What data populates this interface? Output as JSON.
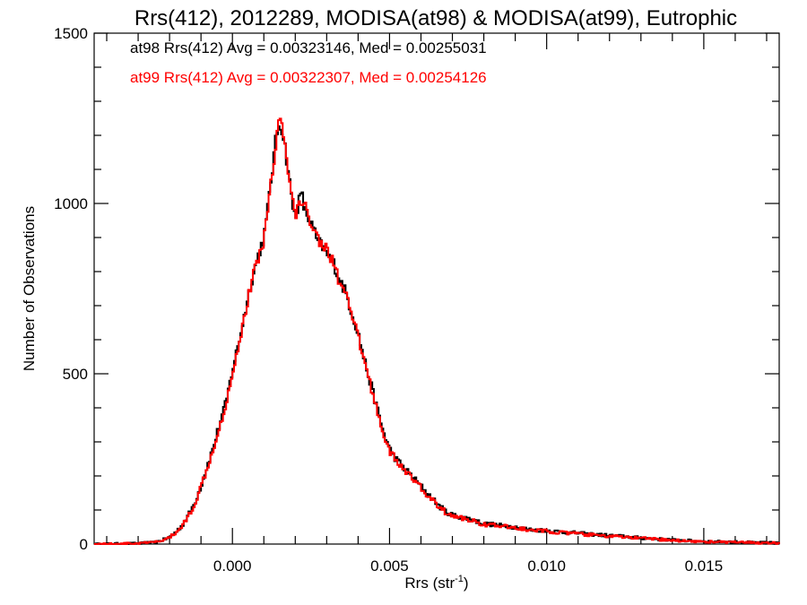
{
  "chart_data": {
    "type": "histogram-step",
    "title": "Rrs(412), 2012289, MODISA(at98) & MODISA(at99), Eutrophic",
    "xlabel": "Rrs (str",
    "xlabel_sup": "-1",
    "xlabel_tail": ")",
    "ylabel": "Number of Observations",
    "xlim": [
      -0.0044,
      0.0174
    ],
    "ylim": [
      0,
      1500
    ],
    "xticks": [
      0.0,
      0.005,
      0.01,
      0.015
    ],
    "xtick_labels": [
      "0.000",
      "0.005",
      "0.010",
      "0.015"
    ],
    "yticks": [
      0,
      500,
      1000,
      1500
    ],
    "ytick_labels": [
      "0",
      "500",
      "1000",
      "1500"
    ],
    "legend": [
      {
        "text": "at98 Rrs(412) Avg = 0.00323146, Med = 0.00255031",
        "color": "#000000"
      },
      {
        "text": "at99 Rrs(412) Avg = 0.00322307, Med = 0.00254126",
        "color": "#ff0000"
      }
    ],
    "series": [
      {
        "name": "at98",
        "color": "#000000",
        "points": [
          [
            -0.0044,
            0
          ],
          [
            -0.003,
            2
          ],
          [
            -0.0025,
            5
          ],
          [
            -0.0022,
            12
          ],
          [
            -0.002,
            20
          ],
          [
            -0.0018,
            35
          ],
          [
            -0.0016,
            55
          ],
          [
            -0.0014,
            85
          ],
          [
            -0.0012,
            120
          ],
          [
            -0.001,
            170
          ],
          [
            -0.0008,
            230
          ],
          [
            -0.0006,
            285
          ],
          [
            -0.0004,
            355
          ],
          [
            -0.0002,
            415
          ],
          [
            0.0,
            510
          ],
          [
            0.0002,
            590
          ],
          [
            0.0004,
            680
          ],
          [
            0.0006,
            770
          ],
          [
            0.0008,
            840
          ],
          [
            0.001,
            900
          ],
          [
            0.0011,
            960
          ],
          [
            0.0012,
            1050
          ],
          [
            0.0013,
            1120
          ],
          [
            0.0014,
            1200
          ],
          [
            0.0015,
            1240
          ],
          [
            0.0016,
            1210
          ],
          [
            0.0017,
            1150
          ],
          [
            0.0018,
            1080
          ],
          [
            0.0019,
            1000
          ],
          [
            0.002,
            960
          ],
          [
            0.0021,
            1000
          ],
          [
            0.0022,
            1030
          ],
          [
            0.0023,
            980
          ],
          [
            0.0024,
            960
          ],
          [
            0.0025,
            940
          ],
          [
            0.0026,
            920
          ],
          [
            0.0027,
            890
          ],
          [
            0.0028,
            880
          ],
          [
            0.0029,
            870
          ],
          [
            0.003,
            850
          ],
          [
            0.0032,
            830
          ],
          [
            0.0034,
            780
          ],
          [
            0.0036,
            740
          ],
          [
            0.0038,
            680
          ],
          [
            0.004,
            620
          ],
          [
            0.0042,
            540
          ],
          [
            0.0044,
            470
          ],
          [
            0.0046,
            400
          ],
          [
            0.0048,
            330
          ],
          [
            0.005,
            280
          ],
          [
            0.0052,
            250
          ],
          [
            0.0054,
            230
          ],
          [
            0.0056,
            210
          ],
          [
            0.0058,
            190
          ],
          [
            0.006,
            170
          ],
          [
            0.0062,
            150
          ],
          [
            0.0064,
            130
          ],
          [
            0.0066,
            110
          ],
          [
            0.0068,
            95
          ],
          [
            0.007,
            85
          ],
          [
            0.0075,
            75
          ],
          [
            0.008,
            60
          ],
          [
            0.0085,
            55
          ],
          [
            0.009,
            50
          ],
          [
            0.0095,
            42
          ],
          [
            0.01,
            40
          ],
          [
            0.0105,
            35
          ],
          [
            0.011,
            32
          ],
          [
            0.0115,
            28
          ],
          [
            0.012,
            25
          ],
          [
            0.0125,
            22
          ],
          [
            0.013,
            18
          ],
          [
            0.0135,
            15
          ],
          [
            0.014,
            12
          ],
          [
            0.0145,
            10
          ],
          [
            0.015,
            8
          ],
          [
            0.0155,
            7
          ],
          [
            0.016,
            6
          ],
          [
            0.0165,
            5
          ],
          [
            0.017,
            4
          ],
          [
            0.0174,
            3
          ]
        ]
      },
      {
        "name": "at99",
        "color": "#ff0000",
        "points": [
          [
            -0.0044,
            0
          ],
          [
            -0.003,
            2
          ],
          [
            -0.0025,
            5
          ],
          [
            -0.0022,
            11
          ],
          [
            -0.002,
            19
          ],
          [
            -0.0018,
            33
          ],
          [
            -0.0016,
            53
          ],
          [
            -0.0014,
            82
          ],
          [
            -0.0012,
            118
          ],
          [
            -0.001,
            168
          ],
          [
            -0.0008,
            226
          ],
          [
            -0.0006,
            282
          ],
          [
            -0.0004,
            350
          ],
          [
            -0.0002,
            410
          ],
          [
            0.0,
            505
          ],
          [
            0.0002,
            585
          ],
          [
            0.0004,
            675
          ],
          [
            0.0006,
            765
          ],
          [
            0.0008,
            835
          ],
          [
            0.001,
            895
          ],
          [
            0.0011,
            955
          ],
          [
            0.0012,
            1045
          ],
          [
            0.0013,
            1115
          ],
          [
            0.0014,
            1195
          ],
          [
            0.0015,
            1250
          ],
          [
            0.0016,
            1220
          ],
          [
            0.0017,
            1145
          ],
          [
            0.0018,
            1075
          ],
          [
            0.0019,
            1010
          ],
          [
            0.002,
            970
          ],
          [
            0.0021,
            990
          ],
          [
            0.0022,
            1010
          ],
          [
            0.0023,
            990
          ],
          [
            0.0024,
            970
          ],
          [
            0.0025,
            950
          ],
          [
            0.0026,
            930
          ],
          [
            0.0027,
            900
          ],
          [
            0.0028,
            890
          ],
          [
            0.0029,
            880
          ],
          [
            0.003,
            860
          ],
          [
            0.0032,
            835
          ],
          [
            0.0034,
            770
          ],
          [
            0.0036,
            730
          ],
          [
            0.0038,
            670
          ],
          [
            0.004,
            610
          ],
          [
            0.0042,
            535
          ],
          [
            0.0044,
            465
          ],
          [
            0.0046,
            395
          ],
          [
            0.0048,
            325
          ],
          [
            0.005,
            275
          ],
          [
            0.0052,
            245
          ],
          [
            0.0054,
            225
          ],
          [
            0.0056,
            205
          ],
          [
            0.0058,
            185
          ],
          [
            0.006,
            165
          ],
          [
            0.0062,
            145
          ],
          [
            0.0064,
            125
          ],
          [
            0.0066,
            108
          ],
          [
            0.0068,
            92
          ],
          [
            0.007,
            82
          ],
          [
            0.0075,
            72
          ],
          [
            0.008,
            58
          ],
          [
            0.0085,
            53
          ],
          [
            0.009,
            48
          ],
          [
            0.0095,
            40
          ],
          [
            0.01,
            38
          ],
          [
            0.0105,
            33
          ],
          [
            0.011,
            30
          ],
          [
            0.0115,
            26
          ],
          [
            0.012,
            23
          ],
          [
            0.0125,
            20
          ],
          [
            0.013,
            17
          ],
          [
            0.0135,
            14
          ],
          [
            0.014,
            11
          ],
          [
            0.0145,
            9
          ],
          [
            0.015,
            7
          ],
          [
            0.0155,
            6
          ],
          [
            0.016,
            5
          ],
          [
            0.0165,
            4
          ],
          [
            0.017,
            3
          ],
          [
            0.0174,
            3
          ]
        ]
      }
    ]
  }
}
